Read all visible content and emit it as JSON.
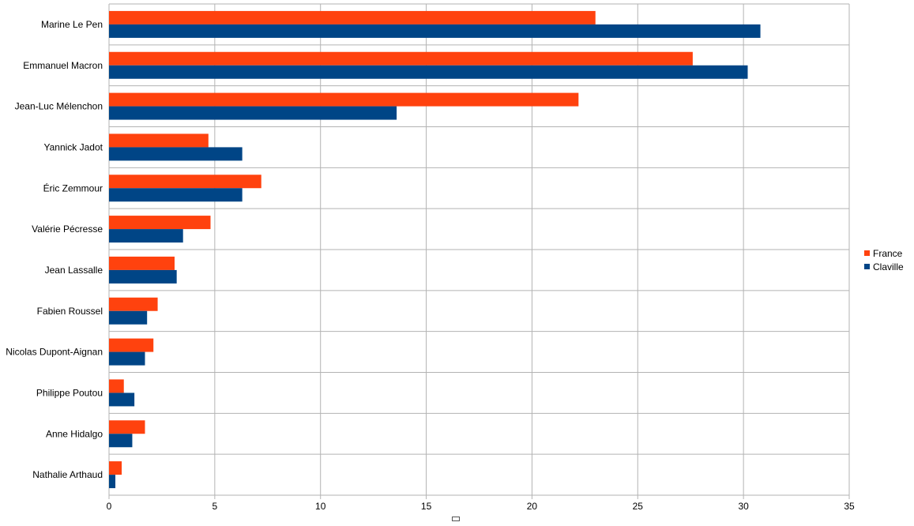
{
  "chart_data": {
    "type": "bar",
    "orientation": "horizontal",
    "categories": [
      "Marine Le Pen",
      "Emmanuel Macron",
      "Jean-Luc Mélenchon",
      "Yannick Jadot",
      "Éric Zemmour",
      "Valérie Pécresse",
      "Jean Lassalle",
      "Fabien Roussel",
      "Nicolas Dupont-Aignan",
      "Philippe Poutou",
      "Anne Hidalgo",
      "Nathalie Arthaud"
    ],
    "series": [
      {
        "name": "France",
        "color": "#ff420e",
        "values": [
          23.0,
          27.6,
          22.2,
          4.7,
          7.2,
          4.8,
          3.1,
          2.3,
          2.1,
          0.7,
          1.7,
          0.6
        ]
      },
      {
        "name": "Claville",
        "color": "#004586",
        "values": [
          30.8,
          30.2,
          13.6,
          6.3,
          6.3,
          3.5,
          3.2,
          1.8,
          1.7,
          1.2,
          1.1,
          0.3
        ]
      }
    ],
    "xlim": [
      0,
      35
    ],
    "xticks": [
      "0",
      "5",
      "10",
      "15",
      "20",
      "25",
      "30",
      "35"
    ],
    "grid": true,
    "legend_position": "right"
  }
}
